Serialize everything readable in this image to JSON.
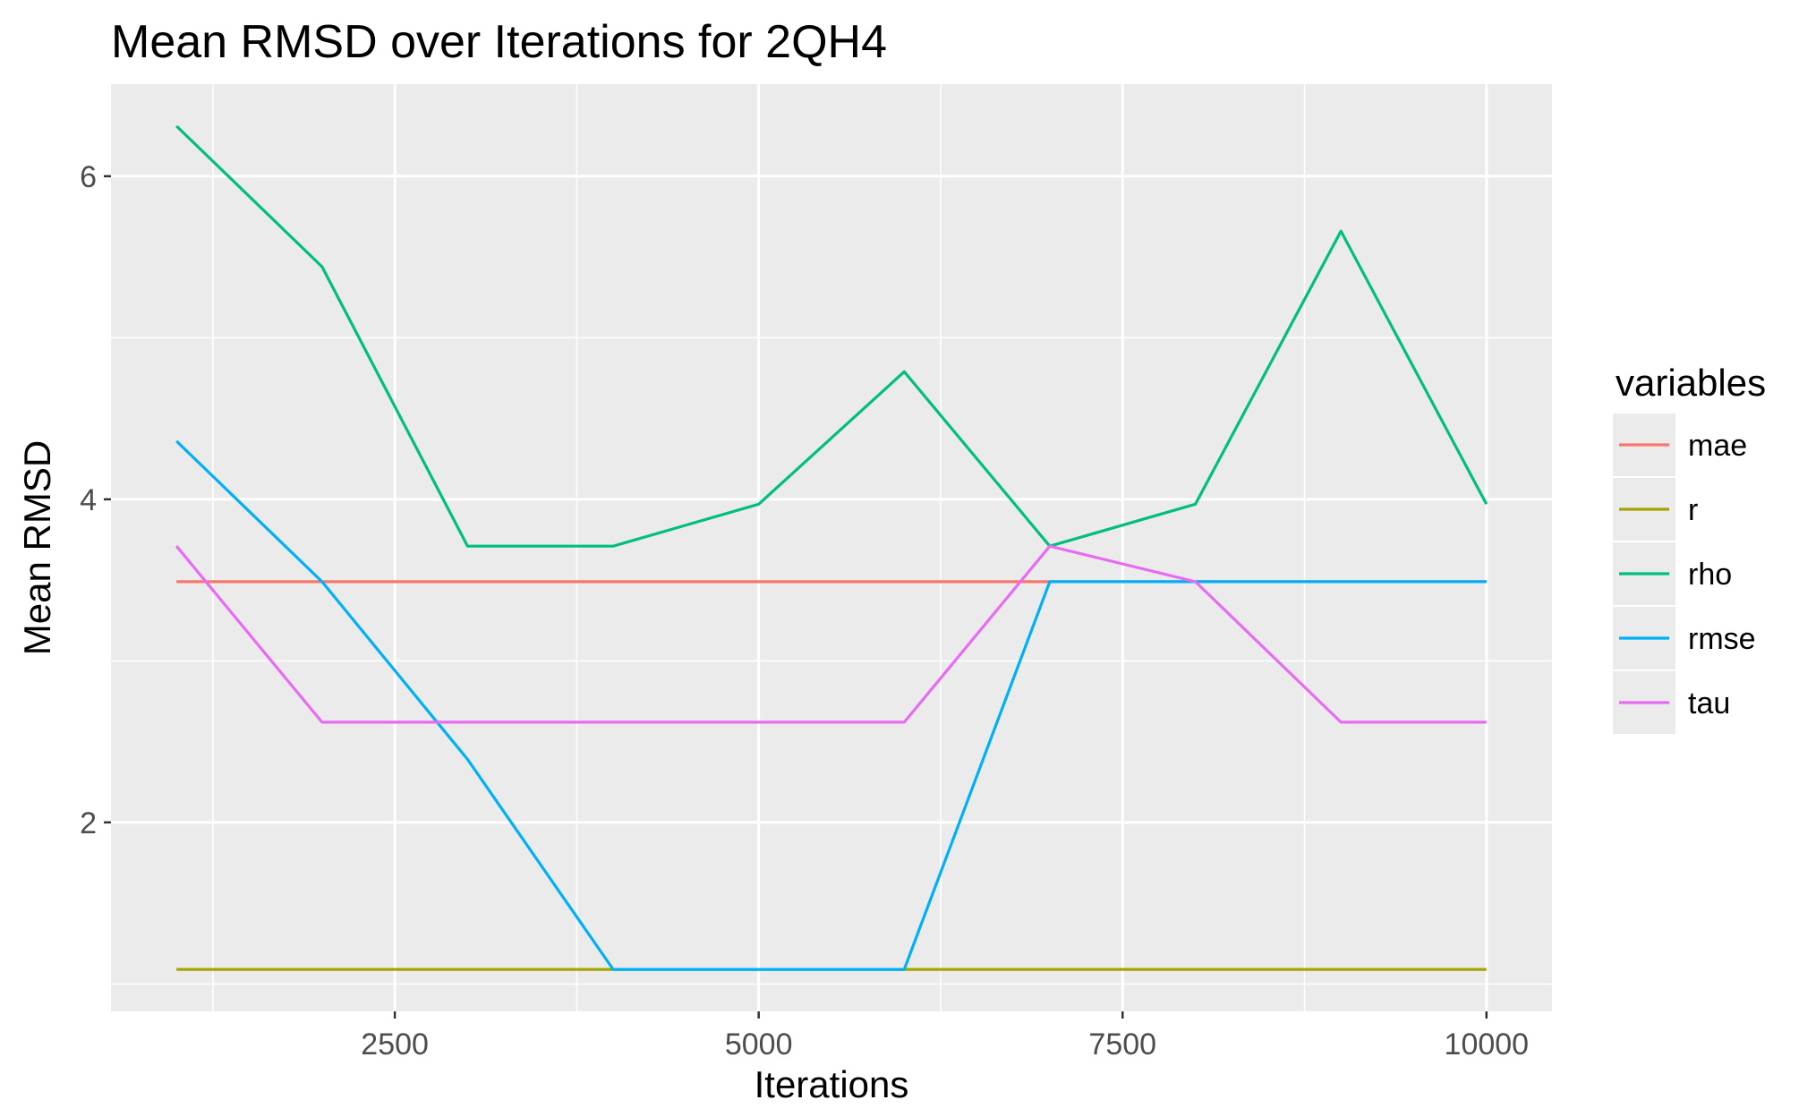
{
  "chart_data": {
    "type": "line",
    "title": "Mean RMSD over Iterations for 2QH4",
    "xlabel": "Iterations",
    "ylabel": "Mean RMSD",
    "xlim": [
      550,
      10450
    ],
    "ylim": [
      0.83,
      6.57
    ],
    "x_ticks": [
      2500,
      5000,
      7500,
      10000
    ],
    "x_tick_labels": [
      "2500",
      "5000",
      "7500",
      "10000"
    ],
    "y_ticks": [
      2,
      4,
      6
    ],
    "y_tick_labels": [
      "2",
      "4",
      "6"
    ],
    "grid": true,
    "panel_background": "#ebebeb",
    "legend": {
      "title": "variables",
      "position": "right"
    },
    "x": [
      1000,
      2000,
      3000,
      4000,
      5000,
      6000,
      7000,
      8000,
      9000,
      10000
    ],
    "series": [
      {
        "name": "mae",
        "color": "#f8766d",
        "values": [
          3.49,
          3.49,
          3.49,
          3.49,
          3.49,
          3.49,
          3.49,
          3.49,
          3.49,
          3.49
        ]
      },
      {
        "name": "r",
        "color": "#a3a500",
        "values": [
          1.09,
          1.09,
          1.09,
          1.09,
          1.09,
          1.09,
          1.09,
          1.09,
          1.09,
          1.09
        ]
      },
      {
        "name": "rho",
        "color": "#00bf7d",
        "values": [
          6.31,
          5.44,
          3.71,
          3.71,
          3.97,
          4.79,
          3.71,
          3.97,
          5.66,
          3.97
        ]
      },
      {
        "name": "rmse",
        "color": "#00b0f6",
        "values": [
          4.36,
          3.49,
          2.39,
          1.09,
          1.09,
          1.09,
          3.49,
          3.49,
          3.49,
          3.49
        ]
      },
      {
        "name": "tau",
        "color": "#e76bf3",
        "values": [
          3.71,
          2.62,
          2.62,
          2.62,
          2.62,
          2.62,
          3.71,
          3.49,
          2.62,
          2.62
        ]
      }
    ]
  }
}
